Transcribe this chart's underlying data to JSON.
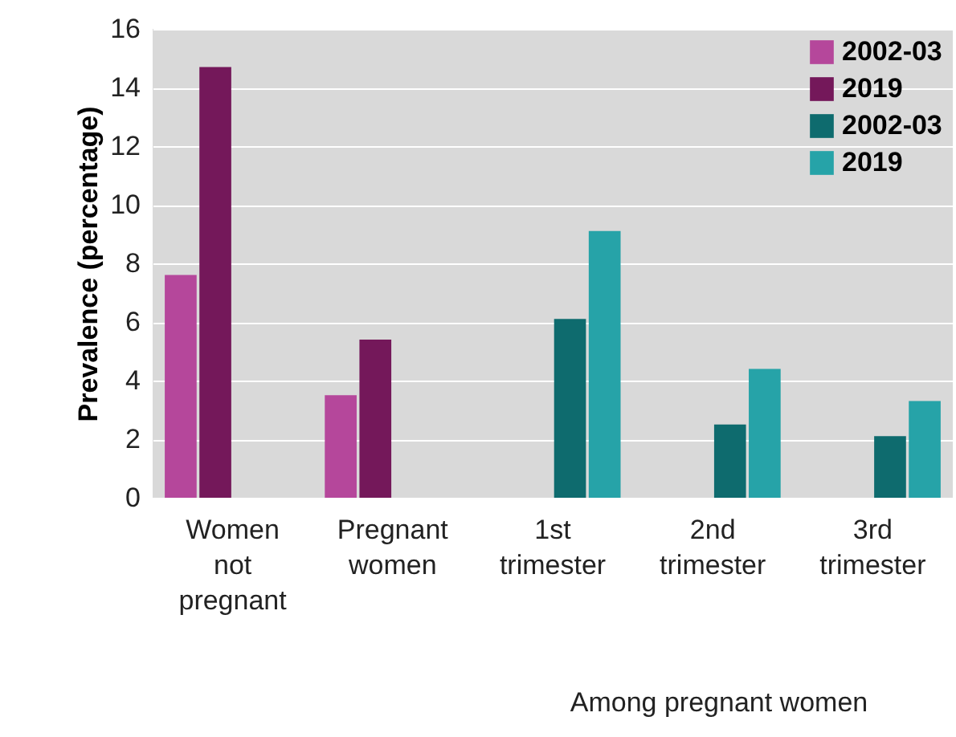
{
  "chart_data": {
    "type": "bar",
    "ylabel": "Prevalence (percentage)",
    "categories": [
      "Women not pregnant",
      "Pregnant women",
      "1st trimester",
      "2nd trimester",
      "3rd trimester"
    ],
    "series": [
      {
        "name": "2002-03",
        "color": "#b5479b",
        "values": [
          7.6,
          3.5,
          null,
          null,
          null
        ]
      },
      {
        "name": "2019",
        "color": "#74185a",
        "values": [
          14.7,
          5.4,
          null,
          null,
          null
        ]
      },
      {
        "name": "2002-03",
        "color": "#0e6b6e",
        "values": [
          null,
          null,
          6.1,
          2.5,
          2.1
        ]
      },
      {
        "name": "2019",
        "color": "#26a3a8",
        "values": [
          null,
          null,
          9.1,
          4.4,
          3.3
        ]
      }
    ],
    "ylim": [
      0,
      16
    ],
    "yticks": [
      0,
      2,
      4,
      6,
      8,
      10,
      12,
      14,
      16
    ],
    "grid": "y",
    "legend": "top right",
    "annotations": [
      "Among pregnant women"
    ]
  }
}
